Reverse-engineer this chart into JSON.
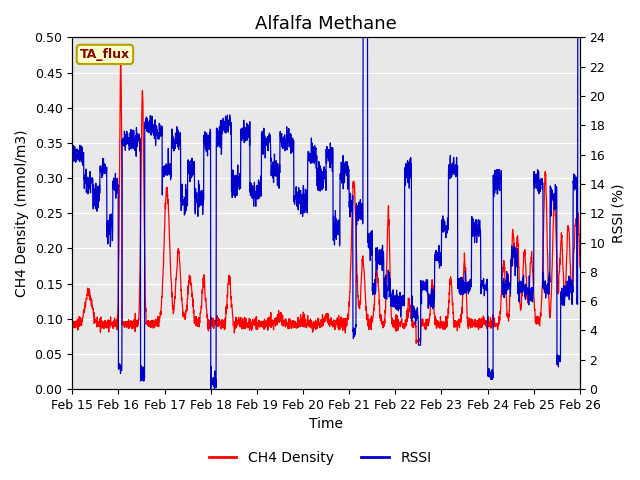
{
  "title": "Alfalfa Methane",
  "xlabel": "Time",
  "ylabel_left": "CH4 Density (mmol/m3)",
  "ylabel_right": "RSSI (%)",
  "ylim_left": [
    0.0,
    0.5
  ],
  "ylim_right": [
    0,
    24
  ],
  "yticks_left": [
    0.0,
    0.05,
    0.1,
    0.15,
    0.2,
    0.25,
    0.3,
    0.35,
    0.4,
    0.45,
    0.5
  ],
  "yticks_right": [
    0,
    2,
    4,
    6,
    8,
    10,
    12,
    14,
    16,
    18,
    20,
    22,
    24
  ],
  "xtick_labels": [
    "Feb 15",
    "Feb 16",
    "Feb 17",
    "Feb 18",
    "Feb 19",
    "Feb 20",
    "Feb 21",
    "Feb 22",
    "Feb 23",
    "Feb 24",
    "Feb 25",
    "Feb 26"
  ],
  "annotation_text": "TA_flux",
  "annotation_color": "#8B0000",
  "annotation_bg": "#FFFFCC",
  "annotation_border": "#B8A000",
  "ch4_color": "#FF0000",
  "rssi_color": "#0000CC",
  "bg_color": "#E8E8E8",
  "grid_color": "#FFFFFF",
  "legend_ch4": "CH4 Density",
  "legend_rssi": "RSSI",
  "title_fontsize": 13,
  "axis_fontsize": 10,
  "tick_fontsize": 9,
  "linewidth": 0.9
}
